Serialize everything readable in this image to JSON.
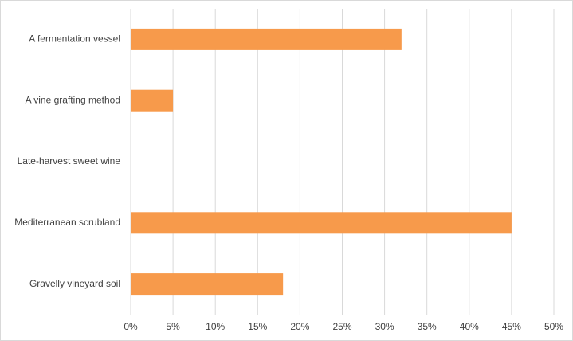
{
  "chart_data": {
    "type": "hbar",
    "categories": [
      "A fermentation vessel",
      "A vine grafting method",
      "Late-harvest sweet wine",
      "Mediterranean scrubland",
      "Gravelly vineyard soil"
    ],
    "values": [
      32,
      5,
      0,
      45,
      18
    ],
    "color": "#f79a4b",
    "xlim": [
      0,
      50
    ],
    "xticks": [
      {
        "value": 0,
        "label": "0%"
      },
      {
        "value": 5,
        "label": "5%"
      },
      {
        "value": 10,
        "label": "10%"
      },
      {
        "value": 15,
        "label": "15%"
      },
      {
        "value": 20,
        "label": "20%"
      },
      {
        "value": 25,
        "label": "25%"
      },
      {
        "value": 30,
        "label": "30%"
      },
      {
        "value": 35,
        "label": "35%"
      },
      {
        "value": 40,
        "label": "40%"
      },
      {
        "value": 45,
        "label": "45%"
      },
      {
        "value": 50,
        "label": "50%"
      }
    ],
    "grid": true
  }
}
